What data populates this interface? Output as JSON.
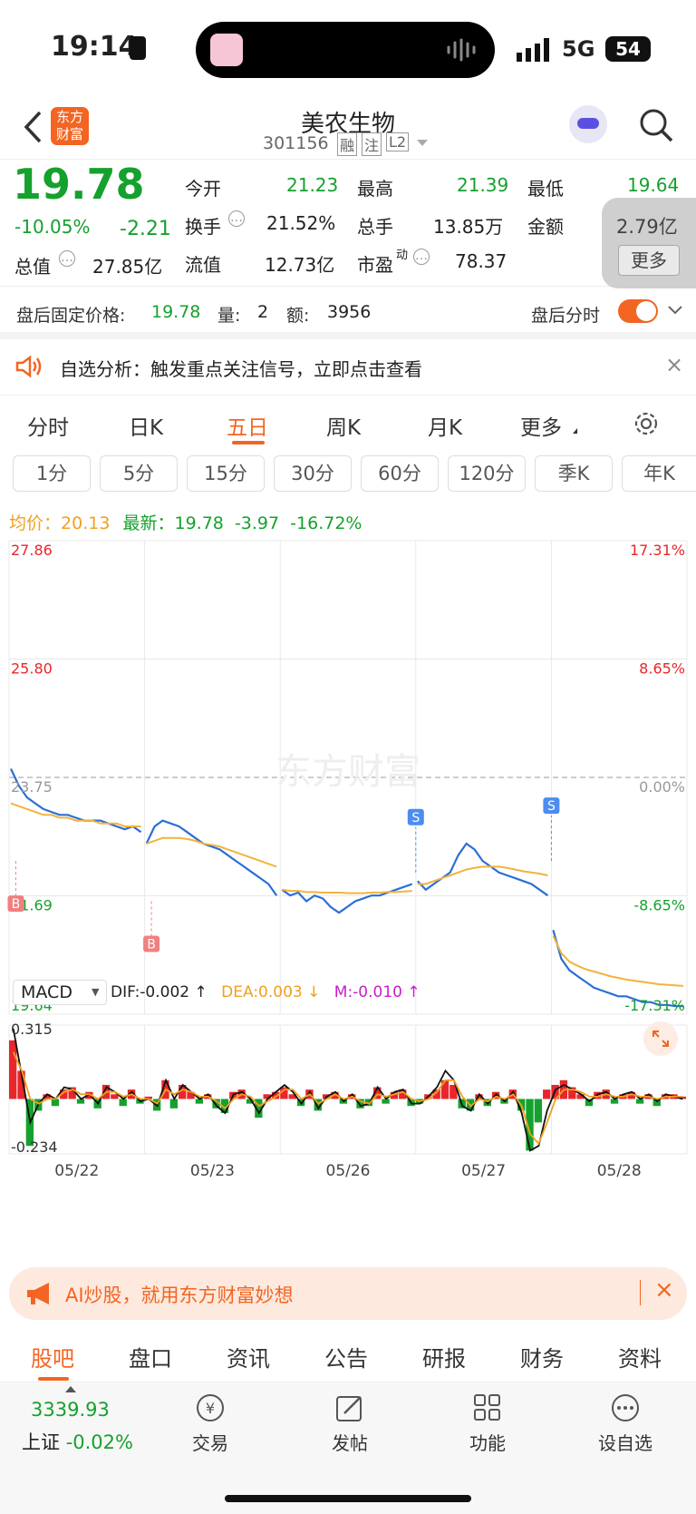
{
  "status_bar": {
    "time": "19:14",
    "network": "5G",
    "battery": "54"
  },
  "header": {
    "logo_text": "东方财富",
    "title": "美农生物",
    "code": "301156",
    "tags": [
      "融",
      "注",
      "L2"
    ]
  },
  "quote": {
    "price": "19.78",
    "change_pct": "-10.05%",
    "change": "-2.21",
    "open_label": "今开",
    "open": "21.23",
    "high_label": "最高",
    "high": "21.39",
    "low_label": "最低",
    "low": "19.64",
    "turnover_label": "换手",
    "turnover": "21.52%",
    "volume_label": "总手",
    "volume": "13.85万",
    "amount_label": "金额",
    "amount": "2.79亿",
    "mktcap_label": "总值",
    "mktcap": "27.85亿",
    "float_label": "流值",
    "float_cap": "12.73亿",
    "pe_label": "市盈",
    "pe_sup": "动",
    "pe": "78.37",
    "more_label": "更多"
  },
  "after_hours": {
    "label": "盘后固定价格:",
    "price": "19.78",
    "vol_label": "量:",
    "vol": "2",
    "amt_label": "额:",
    "amt": "3956",
    "toggle_label": "盘后分时"
  },
  "alert": {
    "text": "自选分析：触发重点关注信号，立即点击查看"
  },
  "tabs": [
    "分时",
    "日K",
    "五日",
    "周K",
    "月K",
    "更多"
  ],
  "active_tab": "五日",
  "periods": [
    "1分",
    "5分",
    "15分",
    "30分",
    "60分",
    "120分",
    "季K",
    "年K"
  ],
  "chart_info": {
    "avg_label": "均价：",
    "avg": "20.13",
    "latest_label": "最新：",
    "latest": "19.78",
    "chg": "-3.97",
    "chg_pct": "-16.72%"
  },
  "macd_header": {
    "name": "MACD",
    "dif": "DIF:-0.002 ↑",
    "dea": "DEA:0.003 ↓",
    "m": "M:-0.010 ↑"
  },
  "watermark": "东方财富",
  "chart_data": {
    "type": "line",
    "title": "",
    "x": [
      "05/22",
      "05/23",
      "05/26",
      "05/27",
      "05/28"
    ],
    "ylim": [
      19.64,
      27.86
    ],
    "y_ticks_left": [
      "27.86",
      "25.80",
      "23.75",
      "21.69",
      "19.64"
    ],
    "y_ticks_right": [
      "17.31%",
      "8.65%",
      "0.00%",
      "-8.65%",
      "-17.31%"
    ],
    "prev_close": 23.75,
    "series": [
      {
        "name": "",
        "color": "#2a6fd6",
        "values_per_day": [
          [
            23.9,
            23.6,
            23.4,
            23.3,
            23.2,
            23.15,
            23.1,
            23.1,
            23.05,
            23.0,
            23.0,
            23.0,
            22.95,
            22.9,
            22.85,
            22.9,
            22.8
          ],
          [
            22.6,
            22.9,
            23.0,
            22.95,
            22.9,
            22.8,
            22.7,
            22.6,
            22.55,
            22.5,
            22.4,
            22.3,
            22.2,
            22.1,
            22.0,
            21.9,
            21.7
          ],
          [
            21.8,
            21.7,
            21.75,
            21.6,
            21.7,
            21.65,
            21.5,
            21.4,
            21.5,
            21.6,
            21.65,
            21.7,
            21.7,
            21.75,
            21.8,
            21.85,
            21.9
          ],
          [
            21.95,
            21.8,
            21.9,
            22.0,
            22.1,
            22.4,
            22.6,
            22.5,
            22.3,
            22.2,
            22.1,
            22.05,
            22.0,
            21.95,
            21.9,
            21.8,
            21.7
          ],
          [
            21.1,
            20.6,
            20.4,
            20.3,
            20.2,
            20.1,
            20.05,
            20.0,
            19.95,
            19.95,
            19.9,
            19.85,
            19.85,
            19.8,
            19.8,
            19.78,
            19.78
          ]
        ]
      },
      {
        "name": "",
        "color": "#f2b33d",
        "values_per_day": [
          [
            23.3,
            23.25,
            23.2,
            23.15,
            23.1,
            23.1,
            23.05,
            23.05,
            23.0,
            23.0,
            23.0,
            22.95,
            22.95,
            22.95,
            22.9,
            22.9,
            22.9
          ],
          [
            22.6,
            22.65,
            22.7,
            22.7,
            22.7,
            22.68,
            22.65,
            22.6,
            22.58,
            22.55,
            22.5,
            22.45,
            22.4,
            22.35,
            22.3,
            22.25,
            22.2
          ],
          [
            21.8,
            21.78,
            21.78,
            21.76,
            21.76,
            21.75,
            21.75,
            21.75,
            21.74,
            21.74,
            21.74,
            21.75,
            21.75,
            21.76,
            21.76,
            21.77,
            21.78
          ],
          [
            21.9,
            21.9,
            21.95,
            22.0,
            22.05,
            22.1,
            22.15,
            22.18,
            22.2,
            22.2,
            22.2,
            22.18,
            22.15,
            22.12,
            22.1,
            22.08,
            22.05
          ],
          [
            21.0,
            20.7,
            20.55,
            20.48,
            20.42,
            20.38,
            20.34,
            20.3,
            20.27,
            20.24,
            20.22,
            20.2,
            20.18,
            20.16,
            20.15,
            20.14,
            20.13
          ]
        ]
      }
    ],
    "markers": [
      {
        "label": "B",
        "day": "05/22",
        "price": 22.3
      },
      {
        "label": "B",
        "day": "05/23",
        "price": 21.6
      },
      {
        "label": "S",
        "day": "05/26",
        "price": 22.1
      },
      {
        "label": "S",
        "day": "05/27",
        "price": 22.3
      }
    ],
    "macd": {
      "ylim": [
        -0.234,
        0.315
      ],
      "y_ticks": [
        "0.315",
        "-0.234"
      ],
      "hist": [
        0.25,
        0.12,
        -0.2,
        -0.05,
        0.02,
        -0.03,
        0.04,
        0.05,
        -0.02,
        0.03,
        -0.04,
        0.06,
        0.02,
        -0.03,
        0.04,
        -0.02,
        0.01,
        -0.05,
        0.08,
        -0.04,
        0.06,
        0.03,
        -0.02,
        0.02,
        -0.04,
        -0.06,
        0.03,
        0.04,
        -0.02,
        -0.08,
        0.02,
        0.03,
        0.05,
        0.02,
        -0.03,
        0.04,
        -0.05,
        0.02,
        0.03,
        -0.02,
        0.02,
        -0.04,
        -0.03,
        0.05,
        -0.02,
        0.03,
        0.04,
        -0.03,
        -0.02,
        0.02,
        0.04,
        0.08,
        0.06,
        -0.04,
        -0.05,
        0.02,
        -0.03,
        0.03,
        -0.02,
        0.04,
        -0.05,
        -0.22,
        -0.1,
        0.04,
        0.06,
        0.08,
        0.05,
        0.02,
        -0.03,
        0.03,
        0.04,
        -0.02,
        0.02,
        0.03,
        -0.02,
        0.02,
        -0.03,
        0.02,
        0.02,
        0.01
      ],
      "dif": [
        0.3,
        0.1,
        -0.1,
        -0.02,
        0.02,
        0.0,
        0.05,
        0.04,
        0.0,
        0.02,
        -0.02,
        0.05,
        0.03,
        0.0,
        0.03,
        -0.01,
        0.0,
        -0.03,
        0.08,
        0.0,
        0.06,
        0.03,
        0.0,
        0.02,
        -0.03,
        -0.06,
        0.02,
        0.03,
        0.0,
        -0.06,
        0.0,
        0.03,
        0.06,
        0.03,
        -0.02,
        0.03,
        -0.04,
        0.01,
        0.03,
        -0.01,
        0.02,
        -0.03,
        -0.02,
        0.05,
        0.0,
        0.03,
        0.04,
        -0.02,
        -0.02,
        0.01,
        0.05,
        0.12,
        0.08,
        -0.03,
        -0.05,
        0.02,
        -0.02,
        0.02,
        -0.01,
        0.03,
        -0.06,
        -0.22,
        -0.2,
        -0.05,
        0.04,
        0.06,
        0.04,
        0.02,
        -0.01,
        0.02,
        0.03,
        0.0,
        0.02,
        0.03,
        0.0,
        0.02,
        -0.01,
        0.02,
        0.01,
        0.0
      ],
      "dea": [
        0.2,
        0.12,
        0.0,
        -0.02,
        0.0,
        0.0,
        0.03,
        0.04,
        0.02,
        0.02,
        0.0,
        0.03,
        0.03,
        0.01,
        0.02,
        0.0,
        0.0,
        -0.02,
        0.04,
        0.02,
        0.04,
        0.03,
        0.01,
        0.01,
        -0.01,
        -0.04,
        0.0,
        0.02,
        0.01,
        -0.03,
        -0.01,
        0.01,
        0.04,
        0.04,
        0.0,
        0.02,
        -0.02,
        0.0,
        0.02,
        0.0,
        0.01,
        -0.01,
        -0.02,
        0.02,
        0.01,
        0.02,
        0.03,
        0.0,
        -0.01,
        0.0,
        0.03,
        0.08,
        0.08,
        0.01,
        -0.03,
        0.0,
        -0.01,
        0.01,
        0.0,
        0.02,
        -0.03,
        -0.15,
        -0.19,
        -0.1,
        0.0,
        0.04,
        0.04,
        0.03,
        0.01,
        0.01,
        0.02,
        0.01,
        0.01,
        0.02,
        0.01,
        0.01,
        0.0,
        0.01,
        0.01,
        0.01
      ]
    }
  },
  "promo": {
    "text": "AI炒股，就用东方财富妙想"
  },
  "bottom_tabs": [
    "股吧",
    "盘口",
    "资讯",
    "公告",
    "研报",
    "财务",
    "资料"
  ],
  "active_bottom_tab": "股吧",
  "index": {
    "value": "3339.93",
    "name": "上证",
    "change_pct": "-0.02%"
  },
  "dock": [
    "交易",
    "发帖",
    "功能",
    "设自选"
  ]
}
